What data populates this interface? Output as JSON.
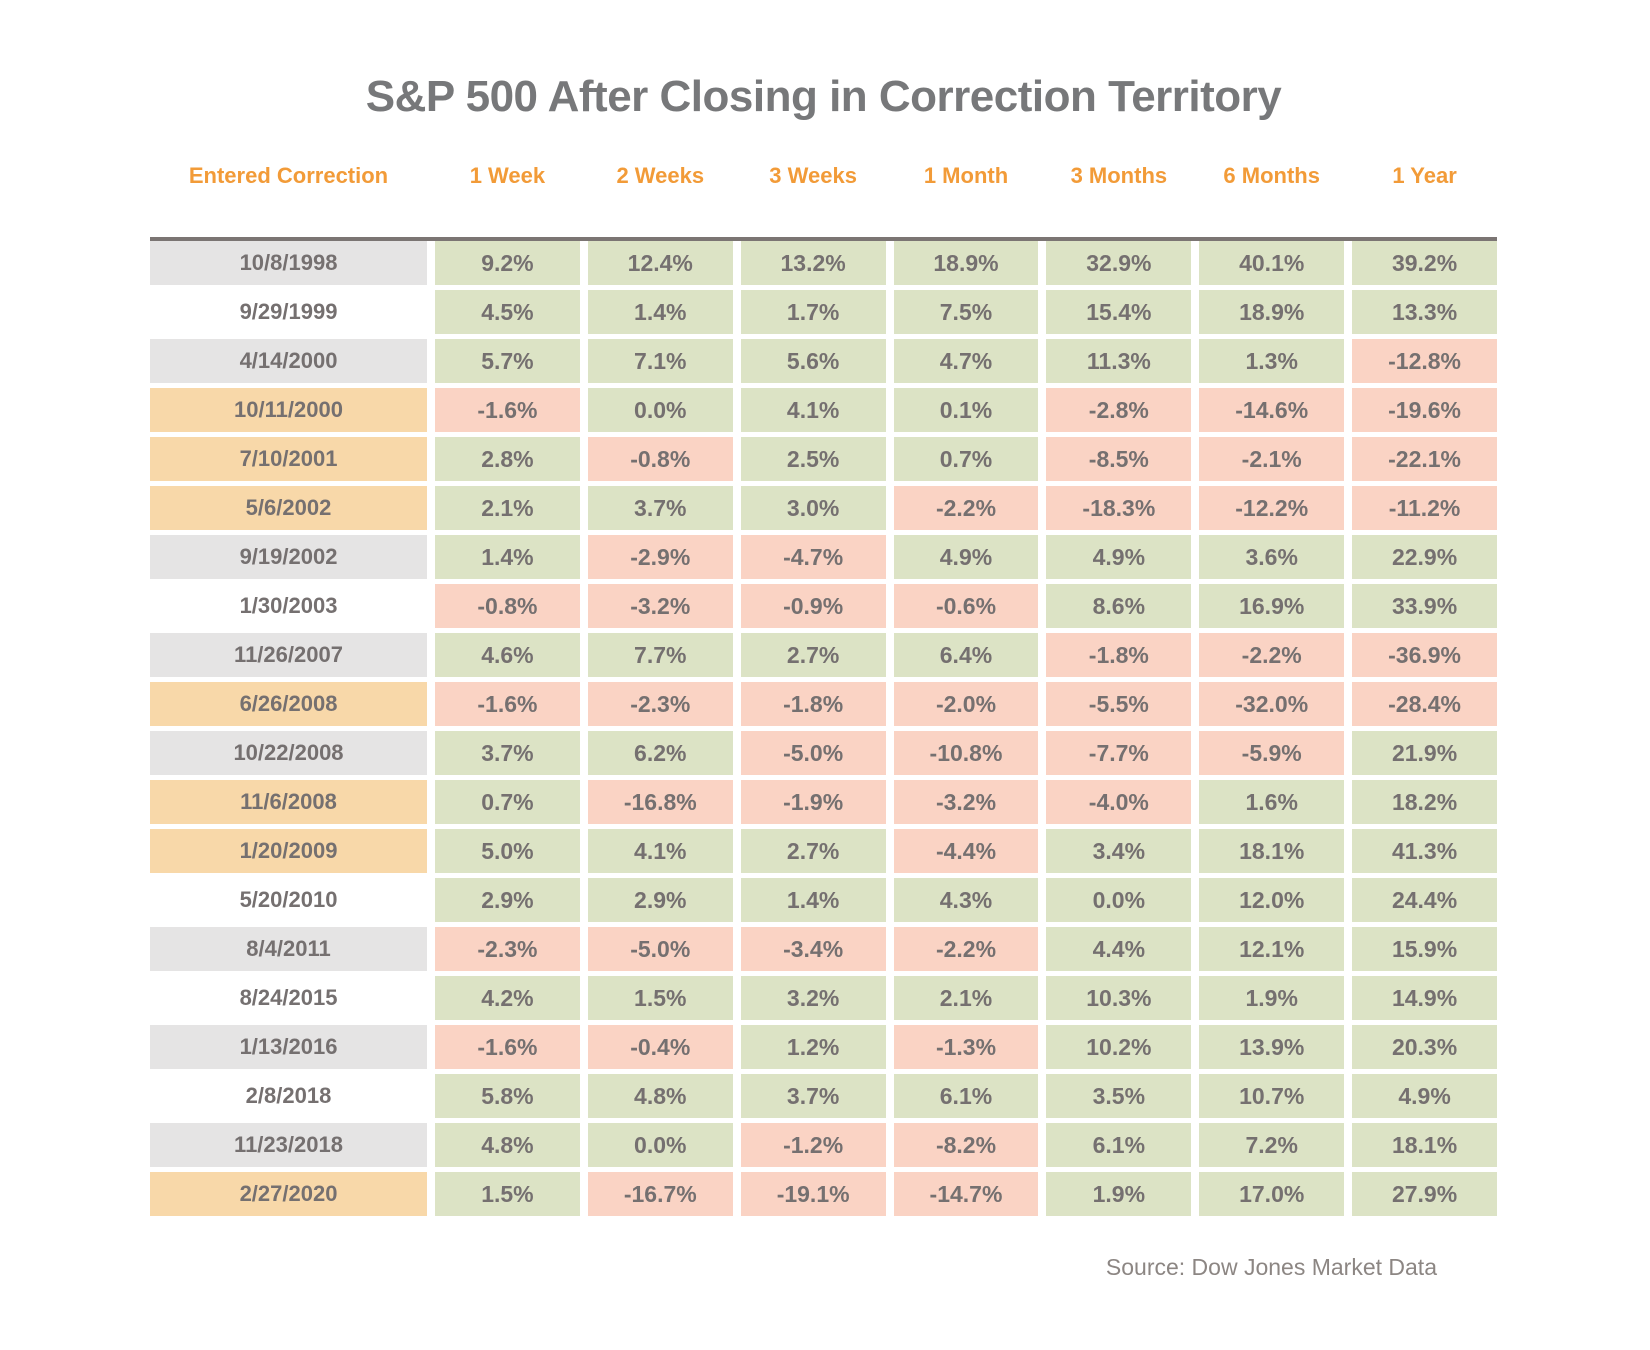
{
  "title": "S&P 500 After Closing in Correction Territory",
  "source": "Source: Dow Jones Market Data",
  "colors": {
    "positive_bg": "#dce3c5",
    "negative_bg": "#fad3c4",
    "row_gray_bg": "#e5e4e4",
    "row_orange_bg": "#f8d8a9",
    "row_white_bg": "#ffffff",
    "header_text": "#f29b38",
    "cell_text": "#757070",
    "title_text": "#77787a",
    "border_color": "#7b7573",
    "source_text": "#8c8683"
  },
  "chart_data": {
    "type": "table",
    "columns": [
      "Entered Correction",
      "1 Week",
      "2 Weeks",
      "3 Weeks",
      "1 Month",
      "3 Months",
      "6 Months",
      "1 Year"
    ],
    "color_rule": "value cells green when return >= 0%, pink when negative; date cells shaded gray, white, or orange",
    "rows": [
      {
        "date": "10/8/1998",
        "highlight": "gray",
        "values": [
          "9.2%",
          "12.4%",
          "13.2%",
          "18.9%",
          "32.9%",
          "40.1%",
          "39.2%"
        ]
      },
      {
        "date": "9/29/1999",
        "highlight": "white",
        "values": [
          "4.5%",
          "1.4%",
          "1.7%",
          "7.5%",
          "15.4%",
          "18.9%",
          "13.3%"
        ]
      },
      {
        "date": "4/14/2000",
        "highlight": "gray",
        "values": [
          "5.7%",
          "7.1%",
          "5.6%",
          "4.7%",
          "11.3%",
          "1.3%",
          "-12.8%"
        ]
      },
      {
        "date": "10/11/2000",
        "highlight": "orange",
        "values": [
          "-1.6%",
          "0.0%",
          "4.1%",
          "0.1%",
          "-2.8%",
          "-14.6%",
          "-19.6%"
        ]
      },
      {
        "date": "7/10/2001",
        "highlight": "orange",
        "values": [
          "2.8%",
          "-0.8%",
          "2.5%",
          "0.7%",
          "-8.5%",
          "-2.1%",
          "-22.1%"
        ]
      },
      {
        "date": "5/6/2002",
        "highlight": "orange",
        "values": [
          "2.1%",
          "3.7%",
          "3.0%",
          "-2.2%",
          "-18.3%",
          "-12.2%",
          "-11.2%"
        ]
      },
      {
        "date": "9/19/2002",
        "highlight": "gray",
        "values": [
          "1.4%",
          "-2.9%",
          "-4.7%",
          "4.9%",
          "4.9%",
          "3.6%",
          "22.9%"
        ]
      },
      {
        "date": "1/30/2003",
        "highlight": "white",
        "values": [
          "-0.8%",
          "-3.2%",
          "-0.9%",
          "-0.6%",
          "8.6%",
          "16.9%",
          "33.9%"
        ]
      },
      {
        "date": "11/26/2007",
        "highlight": "gray",
        "values": [
          "4.6%",
          "7.7%",
          "2.7%",
          "6.4%",
          "-1.8%",
          "-2.2%",
          "-36.9%"
        ]
      },
      {
        "date": "6/26/2008",
        "highlight": "orange",
        "values": [
          "-1.6%",
          "-2.3%",
          "-1.8%",
          "-2.0%",
          "-5.5%",
          "-32.0%",
          "-28.4%"
        ]
      },
      {
        "date": "10/22/2008",
        "highlight": "gray",
        "values": [
          "3.7%",
          "6.2%",
          "-5.0%",
          "-10.8%",
          "-7.7%",
          "-5.9%",
          "21.9%"
        ]
      },
      {
        "date": "11/6/2008",
        "highlight": "orange",
        "values": [
          "0.7%",
          "-16.8%",
          "-1.9%",
          "-3.2%",
          "-4.0%",
          "1.6%",
          "18.2%"
        ]
      },
      {
        "date": "1/20/2009",
        "highlight": "orange",
        "values": [
          "5.0%",
          "4.1%",
          "2.7%",
          "-4.4%",
          "3.4%",
          "18.1%",
          "41.3%"
        ]
      },
      {
        "date": "5/20/2010",
        "highlight": "white",
        "values": [
          "2.9%",
          "2.9%",
          "1.4%",
          "4.3%",
          "0.0%",
          "12.0%",
          "24.4%"
        ]
      },
      {
        "date": "8/4/2011",
        "highlight": "gray",
        "values": [
          "-2.3%",
          "-5.0%",
          "-3.4%",
          "-2.2%",
          "4.4%",
          "12.1%",
          "15.9%"
        ]
      },
      {
        "date": "8/24/2015",
        "highlight": "white",
        "values": [
          "4.2%",
          "1.5%",
          "3.2%",
          "2.1%",
          "10.3%",
          "1.9%",
          "14.9%"
        ]
      },
      {
        "date": "1/13/2016",
        "highlight": "gray",
        "values": [
          "-1.6%",
          "-0.4%",
          "1.2%",
          "-1.3%",
          "10.2%",
          "13.9%",
          "20.3%"
        ]
      },
      {
        "date": "2/8/2018",
        "highlight": "white",
        "values": [
          "5.8%",
          "4.8%",
          "3.7%",
          "6.1%",
          "3.5%",
          "10.7%",
          "4.9%"
        ]
      },
      {
        "date": "11/23/2018",
        "highlight": "gray",
        "values": [
          "4.8%",
          "0.0%",
          "-1.2%",
          "-8.2%",
          "6.1%",
          "7.2%",
          "18.1%"
        ]
      },
      {
        "date": "2/27/2020",
        "highlight": "orange",
        "values": [
          "1.5%",
          "-16.7%",
          "-19.1%",
          "-14.7%",
          "1.9%",
          "17.0%",
          "27.9%"
        ]
      }
    ]
  }
}
